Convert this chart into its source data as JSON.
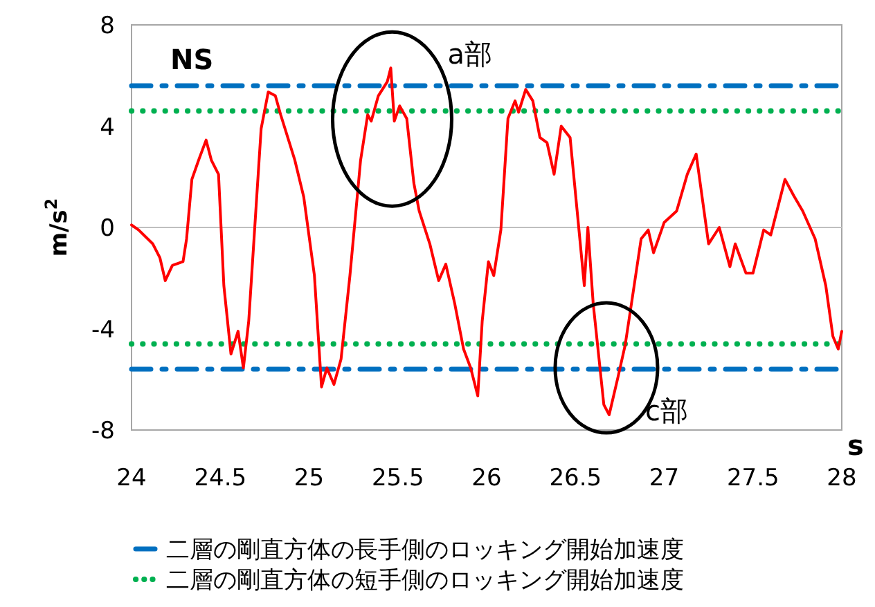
{
  "chart_data": {
    "type": "line",
    "xlabel": "s",
    "ylabel": "m/s$^{2}$",
    "xlim": [
      24,
      28
    ],
    "ylim": [
      -8,
      8
    ],
    "xticks": [
      24,
      24.5,
      25,
      25.5,
      26,
      26.5,
      27,
      27.5,
      28
    ],
    "yticks": [
      -8,
      -4,
      0,
      4,
      8
    ],
    "grid": false,
    "legend": "bottom",
    "marker": "none",
    "line_style": "solid",
    "series": [
      {
        "color": "#ff0000",
        "x": [
          24.0,
          24.04,
          24.12,
          24.16,
          24.19,
          24.23,
          24.29,
          24.31,
          24.34,
          24.38,
          24.42,
          24.45,
          24.49,
          24.52,
          24.56,
          24.6,
          24.63,
          24.66,
          24.7,
          24.73,
          24.77,
          24.81,
          24.84,
          24.92,
          24.97,
          25.03,
          25.07,
          25.1,
          25.14,
          25.18,
          25.23,
          25.29,
          25.33,
          25.35,
          25.39,
          25.44,
          25.46,
          25.48,
          25.51,
          25.55,
          25.59,
          25.62,
          25.68,
          25.73,
          25.77,
          25.82,
          25.87,
          25.91,
          25.95,
          25.975,
          26.01,
          26.04,
          26.08,
          26.12,
          26.16,
          26.18,
          26.22,
          26.26,
          26.3,
          26.34,
          26.38,
          26.42,
          26.47,
          26.55,
          26.57,
          26.6,
          26.63,
          26.66,
          26.69,
          26.74,
          26.78,
          26.82,
          26.87,
          26.91,
          26.94,
          27.0,
          27.07,
          27.13,
          27.18,
          27.25,
          27.31,
          27.37,
          27.4,
          27.46,
          27.5,
          27.56,
          27.6,
          27.68,
          27.73,
          27.78,
          27.85,
          27.91,
          27.95,
          27.98,
          28.0
        ],
        "values": [
          0.1,
          -0.1,
          -0.65,
          -1.2,
          -2.1,
          -1.5,
          -1.35,
          -0.45,
          1.9,
          2.7,
          3.45,
          2.65,
          2.1,
          -2.3,
          -5.0,
          -4.1,
          -5.55,
          -3.7,
          0.65,
          3.9,
          5.35,
          5.2,
          4.45,
          2.65,
          1.2,
          -1.9,
          -6.3,
          -5.55,
          -6.2,
          -5.2,
          -1.9,
          2.65,
          4.45,
          4.2,
          5.2,
          5.75,
          6.3,
          4.2,
          4.8,
          4.3,
          1.75,
          0.65,
          -0.65,
          -2.1,
          -1.45,
          -3.0,
          -4.8,
          -5.55,
          -6.65,
          -3.7,
          -1.35,
          -1.9,
          -0.1,
          4.3,
          5.0,
          4.55,
          5.45,
          5.0,
          3.55,
          3.35,
          2.1,
          4.0,
          3.55,
          -2.3,
          0.0,
          -3.0,
          -5.0,
          -7.0,
          -7.4,
          -5.9,
          -4.65,
          -2.8,
          -0.45,
          -0.1,
          -1.0,
          0.2,
          0.65,
          2.1,
          2.9,
          -0.65,
          0.0,
          -1.55,
          -0.65,
          -1.8,
          -1.8,
          -0.1,
          -0.3,
          1.9,
          1.25,
          0.65,
          -0.45,
          -2.3,
          -4.3,
          -4.8,
          -4.1
        ]
      }
    ],
    "ref_lines": [
      {
        "axis": "y",
        "value": 0,
        "color": "#bfbfbf",
        "line_style": "solid"
      },
      {
        "axis": "y",
        "value": 5.6,
        "color": "#0070c0",
        "line_style": "dashdot",
        "label": "二層の剛直方体の長手側のロッキング開始加速度"
      },
      {
        "axis": "y",
        "value": 4.6,
        "color": "#00b050",
        "line_style": "dotted",
        "label": "二層の剛直方体の短手側のロッキング開始加速度"
      },
      {
        "axis": "y",
        "value": -4.6,
        "color": "#00b050",
        "line_style": "dotted"
      },
      {
        "axis": "y",
        "value": -5.6,
        "color": "#0070c0",
        "line_style": "dashdot"
      }
    ],
    "annotations": [
      "NS",
      {
        "text": "a部",
        "x": 25.46,
        "y": 6.3
      },
      {
        "text": "c部",
        "x": 26.69,
        "y": -7.4
      }
    ]
  }
}
